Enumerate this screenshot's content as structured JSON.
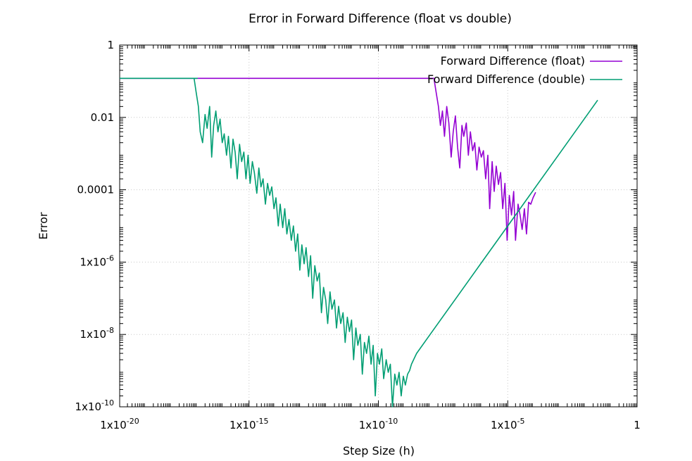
{
  "chart_data": {
    "type": "line",
    "title": "Error in Forward Difference (float vs double)",
    "xlabel": "Step Size (h)",
    "ylabel": "Error",
    "x_scale": "log10",
    "y_scale": "log10",
    "xlim": [
      1e-20,
      1
    ],
    "ylim": [
      1e-10,
      1
    ],
    "grid": true,
    "legend_position": "top-right",
    "x_ticks": [
      {
        "value": 1e-20,
        "base": "1x10",
        "exp": "-20"
      },
      {
        "value": 1e-15,
        "base": "1x10",
        "exp": "-15"
      },
      {
        "value": 1e-10,
        "base": "1x10",
        "exp": "-10"
      },
      {
        "value": 1e-05,
        "base": "1x10",
        "exp": "-5"
      },
      {
        "value": 1,
        "base": "1",
        "exp": ""
      }
    ],
    "y_ticks": [
      {
        "value": 1e-10,
        "base": "1x10",
        "exp": "-10"
      },
      {
        "value": 1e-08,
        "base": "1x10",
        "exp": "-8"
      },
      {
        "value": 1e-06,
        "base": "1x10",
        "exp": "-6"
      },
      {
        "value": 0.0001,
        "base": "0.0001",
        "exp": ""
      },
      {
        "value": 0.01,
        "base": "0.01",
        "exp": ""
      },
      {
        "value": 1,
        "base": "1",
        "exp": ""
      }
    ],
    "series": [
      {
        "name": "Forward Difference (float)",
        "color": "#9400d3",
        "points": [
          [
            1e-20,
            0.12
          ],
          [
            1e-18,
            0.12
          ],
          [
            1e-16,
            0.12
          ],
          [
            1e-14,
            0.12
          ],
          [
            1e-12,
            0.12
          ],
          [
            1e-10,
            0.12
          ],
          [
            1e-09,
            0.12
          ],
          [
            3e-09,
            0.12
          ],
          [
            1e-08,
            0.12
          ],
          [
            1.4e-08,
            0.12
          ],
          [
            1.7e-08,
            0.05
          ],
          [
            2.1e-08,
            0.02
          ],
          [
            2.5e-08,
            0.006
          ],
          [
            3e-08,
            0.015
          ],
          [
            3.6e-08,
            0.003
          ],
          [
            4.4e-08,
            0.02
          ],
          [
            5.3e-08,
            0.007
          ],
          [
            6.5e-08,
            0.0008
          ],
          [
            7.8e-08,
            0.004
          ],
          [
            9.5e-08,
            0.011
          ],
          [
            1.15e-07,
            0.0015
          ],
          [
            1.4e-07,
            0.0004
          ],
          [
            1.7e-07,
            0.006
          ],
          [
            2e-07,
            0.003
          ],
          [
            2.5e-07,
            0.007
          ],
          [
            3e-07,
            0.0009
          ],
          [
            3.6e-07,
            0.004
          ],
          [
            4.4e-07,
            0.0012
          ],
          [
            5.3e-07,
            0.002
          ],
          [
            6.4e-07,
            0.00035
          ],
          [
            7.8e-07,
            0.0015
          ],
          [
            9.5e-07,
            0.0008
          ],
          [
            1.15e-06,
            0.0012
          ],
          [
            1.4e-06,
            0.0002
          ],
          [
            1.7e-06,
            0.0009
          ],
          [
            2e-06,
            3e-05
          ],
          [
            2.5e-06,
            0.0006
          ],
          [
            3e-06,
            9e-05
          ],
          [
            3.6e-06,
            0.00045
          ],
          [
            4.4e-06,
            0.00014
          ],
          [
            5.3e-06,
            0.0003
          ],
          [
            6.4e-06,
            3e-05
          ],
          [
            7.8e-06,
            0.00015
          ],
          [
            9.5e-06,
            4e-06
          ],
          [
            1.15e-05,
            7e-05
          ],
          [
            1.4e-05,
            2e-05
          ],
          [
            1.7e-05,
            9e-05
          ],
          [
            2e-05,
            4e-06
          ],
          [
            2.5e-05,
            4e-05
          ],
          [
            3e-05,
            2e-05
          ],
          [
            3.6e-05,
            8e-06
          ],
          [
            4.4e-05,
            3e-05
          ],
          [
            5.3e-05,
            6e-06
          ],
          [
            6.4e-05,
            4.5e-05
          ],
          [
            7.8e-05,
            4e-05
          ],
          [
            9.5e-05,
            6e-05
          ],
          [
            0.00012,
            8.5e-05
          ]
        ]
      },
      {
        "name": "Forward Difference (double)",
        "color": "#009e73",
        "points": [
          [
            1e-20,
            0.12
          ],
          [
            1e-19,
            0.12
          ],
          [
            1e-18,
            0.12
          ],
          [
            1e-17,
            0.12
          ],
          [
            6e-18,
            0.12
          ],
          [
            7.5e-18,
            0.12
          ],
          [
            9e-18,
            0.05
          ],
          [
            1.1e-17,
            0.02
          ],
          [
            1.3e-17,
            0.004
          ],
          [
            1.6e-17,
            0.002
          ],
          [
            2e-17,
            0.012
          ],
          [
            2.4e-17,
            0.005
          ],
          [
            3e-17,
            0.02
          ],
          [
            3.6e-17,
            0.0008
          ],
          [
            4.3e-17,
            0.006
          ],
          [
            5.2e-17,
            0.015
          ],
          [
            6.3e-17,
            0.004
          ],
          [
            7.6e-17,
            0.009
          ],
          [
            9.2e-17,
            0.002
          ],
          [
            1.1e-16,
            0.0035
          ],
          [
            1.35e-16,
            0.0009
          ],
          [
            1.6e-16,
            0.003
          ],
          [
            2e-16,
            0.0004
          ],
          [
            2.4e-16,
            0.0025
          ],
          [
            2.9e-16,
            0.0011
          ],
          [
            3.5e-16,
            0.0002
          ],
          [
            4.3e-16,
            0.0018
          ],
          [
            5.2e-16,
            0.0006
          ],
          [
            6.3e-16,
            0.0011
          ],
          [
            7.6e-16,
            0.0002
          ],
          [
            9.2e-16,
            0.0009
          ],
          [
            1.1e-15,
            0.00015
          ],
          [
            1.35e-15,
            0.0006
          ],
          [
            1.6e-15,
            0.0003
          ],
          [
            2e-15,
            8e-05
          ],
          [
            2.4e-15,
            0.0004
          ],
          [
            2.9e-15,
            0.00012
          ],
          [
            3.5e-15,
            0.0002
          ],
          [
            4.3e-15,
            4e-05
          ],
          [
            5.2e-15,
            0.00015
          ],
          [
            6.3e-15,
            7e-05
          ],
          [
            7.6e-15,
            0.00012
          ],
          [
            9.2e-15,
            3e-05
          ],
          [
            1.1e-14,
            6e-05
          ],
          [
            1.35e-14,
            1e-05
          ],
          [
            1.6e-14,
            4e-05
          ],
          [
            2e-14,
            9e-06
          ],
          [
            2.4e-14,
            3e-05
          ],
          [
            2.9e-14,
            6e-06
          ],
          [
            3.5e-14,
            1.5e-05
          ],
          [
            4.3e-14,
            4e-06
          ],
          [
            5.2e-14,
            1e-05
          ],
          [
            6.3e-14,
            2e-06
          ],
          [
            7.6e-14,
            6e-06
          ],
          [
            9.2e-14,
            6e-07
          ],
          [
            1.1e-13,
            3e-06
          ],
          [
            1.35e-13,
            9e-07
          ],
          [
            1.6e-13,
            2.5e-06
          ],
          [
            2e-13,
            4e-07
          ],
          [
            2.4e-13,
            1.5e-06
          ],
          [
            2.9e-13,
            1e-07
          ],
          [
            3.5e-13,
            8e-07
          ],
          [
            4.3e-13,
            3e-07
          ],
          [
            5.2e-13,
            5e-07
          ],
          [
            6.3e-13,
            4e-08
          ],
          [
            7.6e-13,
            2e-07
          ],
          [
            9.2e-13,
            9e-08
          ],
          [
            1.1e-12,
            2e-08
          ],
          [
            1.35e-12,
            1.5e-07
          ],
          [
            1.6e-12,
            5e-08
          ],
          [
            2e-12,
            9e-08
          ],
          [
            2.4e-12,
            1.5e-08
          ],
          [
            2.9e-12,
            6e-08
          ],
          [
            3.5e-12,
            2e-08
          ],
          [
            4.3e-12,
            4e-08
          ],
          [
            5.2e-12,
            6e-09
          ],
          [
            6.3e-12,
            3e-08
          ],
          [
            7.6e-12,
            1.2e-08
          ],
          [
            9.2e-12,
            2.5e-08
          ],
          [
            1.1e-11,
            2e-09
          ],
          [
            1.35e-11,
            1.5e-08
          ],
          [
            1.6e-11,
            5e-09
          ],
          [
            2e-11,
            1e-08
          ],
          [
            2.4e-11,
            8e-10
          ],
          [
            2.9e-11,
            6e-09
          ],
          [
            3.5e-11,
            3e-09
          ],
          [
            4.3e-11,
            9e-09
          ],
          [
            5.2e-11,
            1.5e-09
          ],
          [
            6.3e-11,
            5e-09
          ],
          [
            7.6e-11,
            2e-10
          ],
          [
            9.2e-11,
            3e-09
          ],
          [
            1.1e-10,
            1.5e-09
          ],
          [
            1.35e-10,
            4e-09
          ],
          [
            1.6e-10,
            6e-10
          ],
          [
            2e-10,
            2e-09
          ],
          [
            2.4e-10,
            9e-10
          ],
          [
            2.9e-10,
            1.5e-09
          ],
          [
            3.5e-10,
            1e-10
          ],
          [
            4.3e-10,
            8e-10
          ],
          [
            5.2e-10,
            4e-10
          ],
          [
            6.3e-10,
            9e-10
          ],
          [
            7.6e-10,
            2e-10
          ],
          [
            9.2e-10,
            7e-10
          ],
          [
            1.1e-09,
            4e-10
          ],
          [
            1.35e-09,
            8e-10
          ],
          [
            1.6e-09,
            1e-09
          ],
          [
            1.9e-09,
            1.5e-09
          ],
          [
            2.3e-09,
            2e-09
          ],
          [
            3e-09,
            3e-09
          ],
          [
            1e-08,
            1e-08
          ],
          [
            1e-07,
            1e-07
          ],
          [
            1e-06,
            1e-06
          ],
          [
            1e-05,
            1e-05
          ],
          [
            0.0001,
            0.0001
          ],
          [
            0.001,
            0.001
          ],
          [
            0.01,
            0.01
          ],
          [
            0.03,
            0.03
          ]
        ]
      }
    ]
  }
}
